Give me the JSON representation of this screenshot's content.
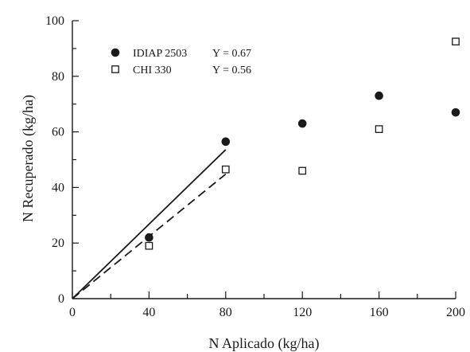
{
  "chart_data": {
    "type": "scatter",
    "xlabel": "N Aplicado (kg/ha)",
    "ylabel": "N Recuperado (kg/ha)",
    "xlim": [
      0,
      200
    ],
    "ylim": [
      0,
      100
    ],
    "xticks": [
      "0",
      "40",
      "80",
      "120",
      "160",
      "200"
    ],
    "yticks": [
      "0",
      "20",
      "40",
      "60",
      "80",
      "100"
    ],
    "grid": false,
    "legend_position": "top-left",
    "series": [
      {
        "name": "IDIAP 2503",
        "legend_label": "IDIAP 2503",
        "equation": "Y = 0.67",
        "marker": "filled-circle",
        "color": "#1a1a1a",
        "x": [
          40,
          80,
          120,
          160,
          200
        ],
        "y": [
          22,
          56.5,
          63,
          73,
          67
        ],
        "fit_line": {
          "style": "solid",
          "x": [
            0,
            80
          ],
          "y": [
            0,
            53.6
          ]
        }
      },
      {
        "name": "CHI 330",
        "legend_label": "CHI 330",
        "equation": "Y = 0.56",
        "marker": "open-square",
        "color": "#1a1a1a",
        "x": [
          40,
          80,
          120,
          160,
          200
        ],
        "y": [
          19,
          46.5,
          46,
          61,
          92.5
        ],
        "fit_line": {
          "style": "dashed",
          "x": [
            0,
            80
          ],
          "y": [
            0,
            44.8
          ]
        }
      }
    ]
  }
}
